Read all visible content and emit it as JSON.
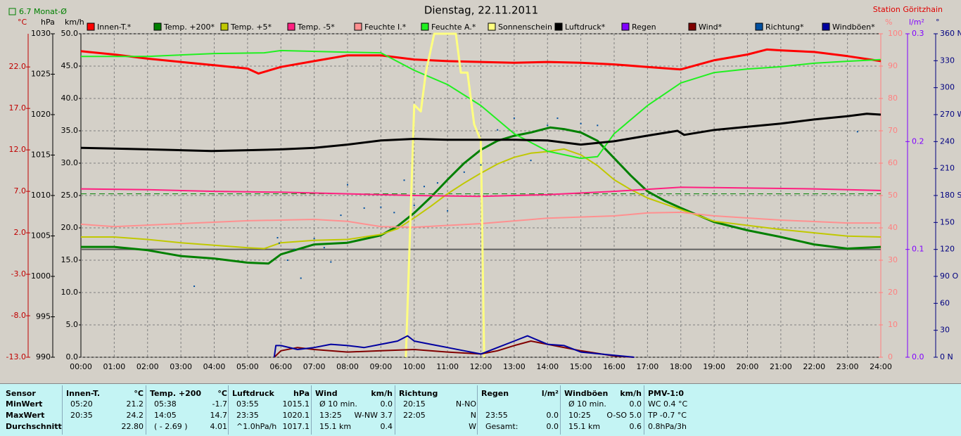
{
  "chart_data": {
    "type": "line",
    "title": "Dienstag, 22.11.2011",
    "station": "Station Göritzhain",
    "monthly_average": {
      "value": 6.7,
      "label": "6.7 Monat-Ø"
    },
    "xlim": [
      0,
      24
    ],
    "xticks": [
      {
        "value": 0,
        "label": "00:00"
      },
      {
        "value": 1,
        "label": "01:00"
      },
      {
        "value": 2,
        "label": "02:00"
      },
      {
        "value": 3,
        "label": "03:00"
      },
      {
        "value": 4,
        "label": "04:00"
      },
      {
        "value": 5,
        "label": "05:00"
      },
      {
        "value": 6,
        "label": "06:00"
      },
      {
        "value": 7,
        "label": "07:00"
      },
      {
        "value": 8,
        "label": "08:00"
      },
      {
        "value": 9,
        "label": "09:00"
      },
      {
        "value": 10,
        "label": "10:00"
      },
      {
        "value": 11,
        "label": "11:00"
      },
      {
        "value": 12,
        "label": "12:00"
      },
      {
        "value": 13,
        "label": "13:00"
      },
      {
        "value": 14,
        "label": "14:00"
      },
      {
        "value": 15,
        "label": "15:00"
      },
      {
        "value": 16,
        "label": "16:00"
      },
      {
        "value": 17,
        "label": "17:00"
      },
      {
        "value": 18,
        "label": "18:00"
      },
      {
        "value": 19,
        "label": "19:00"
      },
      {
        "value": 20,
        "label": "20:00"
      },
      {
        "value": 21,
        "label": "21:00"
      },
      {
        "value": 22,
        "label": "22:00"
      },
      {
        "value": 23,
        "label": "23:00"
      },
      {
        "value": 24,
        "label": "24:00"
      }
    ],
    "grid": true,
    "axes": [
      {
        "label": "°C",
        "color": "#c00000",
        "ylim": [
          -13,
          26
        ],
        "yticks": [
          {
            "value": -13,
            "label": "-13.0"
          },
          {
            "value": -8,
            "label": "-8.0"
          },
          {
            "value": -3,
            "label": "-3.0"
          },
          {
            "value": 2,
            "label": "2.0"
          },
          {
            "value": 7,
            "label": "7.0"
          },
          {
            "value": 12,
            "label": "12.0"
          },
          {
            "value": 17,
            "label": "17.0"
          },
          {
            "value": 22,
            "label": "22.0"
          }
        ]
      },
      {
        "label": "hPa",
        "color": "#000000",
        "ylim": [
          990,
          1030
        ],
        "yticks": [
          990,
          995,
          1000,
          1005,
          1010,
          1015,
          1020,
          1025,
          1030
        ]
      },
      {
        "label": "km/h",
        "color": "#000000",
        "ylim": [
          0,
          50
        ],
        "yticks": [
          {
            "value": 0,
            "label": "0.0"
          },
          {
            "value": 5,
            "label": "5.0"
          },
          {
            "value": 10,
            "label": "10.0"
          },
          {
            "value": 15,
            "label": "15.0"
          },
          {
            "value": 20,
            "label": "20.0"
          },
          {
            "value": 25,
            "label": "25.0"
          },
          {
            "value": 30,
            "label": "30.0"
          },
          {
            "value": 35,
            "label": "35.0"
          },
          {
            "value": 40,
            "label": "40.0"
          },
          {
            "value": 45,
            "label": "45.0"
          },
          {
            "value": 50,
            "label": "50.0"
          }
        ]
      },
      {
        "label": "%",
        "color": "#ff8080",
        "ylim": [
          0,
          100
        ],
        "yticks": [
          0,
          10,
          20,
          30,
          40,
          50,
          60,
          70,
          80,
          90,
          100
        ]
      },
      {
        "label": "l/m²",
        "color": "#8000ff",
        "ylim": [
          0,
          0.3
        ],
        "yticks": [
          {
            "value": 0,
            "label": "0.0"
          },
          {
            "value": 0.1,
            "label": "0.1"
          },
          {
            "value": 0.2,
            "label": "0.2"
          },
          {
            "value": 0.3,
            "label": "0.3"
          }
        ]
      },
      {
        "label": "°",
        "color": "#000080",
        "ylim": [
          0,
          360
        ],
        "yticks": [
          {
            "value": 0,
            "label": "0 N"
          },
          30,
          60,
          {
            "value": 90,
            "label": "90 O"
          },
          120,
          150,
          {
            "value": 180,
            "label": "180 S"
          },
          210,
          240,
          {
            "value": 270,
            "label": "270 W"
          },
          300,
          330,
          {
            "value": 360,
            "label": "360 N"
          }
        ]
      }
    ],
    "series": [
      {
        "name": "Innen-T.*",
        "color": "#ff0000",
        "axis": 0,
        "width": 3,
        "x": [
          0,
          1,
          2,
          3,
          4,
          5,
          5.33,
          6,
          7,
          8,
          9,
          10,
          11,
          12,
          13,
          14,
          15,
          16,
          17,
          18,
          19,
          20,
          20.58,
          21,
          22,
          23,
          24
        ],
        "values": [
          23.9,
          23.5,
          23.0,
          22.6,
          22.2,
          21.8,
          21.2,
          22.0,
          22.7,
          23.4,
          23.4,
          22.9,
          22.7,
          22.6,
          22.5,
          22.6,
          22.5,
          22.3,
          22.0,
          21.7,
          22.8,
          23.5,
          24.1,
          24.0,
          23.8,
          23.3,
          22.7
        ]
      },
      {
        "name": "Temp. +200*",
        "color": "#008000",
        "axis": 0,
        "width": 3,
        "x": [
          0,
          1,
          2,
          3,
          4,
          5,
          5.63,
          6,
          7,
          8,
          9,
          9.5,
          10,
          10.5,
          11,
          11.5,
          12,
          12.5,
          13,
          13.5,
          14.08,
          14.5,
          15,
          15.5,
          16,
          16.5,
          17,
          17.5,
          18,
          19,
          20,
          21,
          22,
          23,
          24
        ],
        "values": [
          0.3,
          0.3,
          -0.1,
          -0.8,
          -1.1,
          -1.6,
          -1.7,
          -0.6,
          0.6,
          0.8,
          1.7,
          2.8,
          4.4,
          6.3,
          8.4,
          10.4,
          12.0,
          13.1,
          13.7,
          14.1,
          14.7,
          14.5,
          14.1,
          13.1,
          11.0,
          8.9,
          7.0,
          5.9,
          5.0,
          3.3,
          2.3,
          1.5,
          0.6,
          0.1,
          0.3
        ]
      },
      {
        "name": "Temp. +5*",
        "color": "#c0c800",
        "axis": 0,
        "width": 2,
        "x": [
          0,
          1,
          2,
          3,
          4,
          5,
          5.5,
          6,
          7,
          8,
          9,
          9.5,
          10,
          10.5,
          11,
          11.5,
          12,
          12.5,
          13,
          13.5,
          14,
          14.5,
          15,
          15.5,
          16,
          16.5,
          17,
          17.5,
          18,
          19,
          20,
          21,
          22,
          23,
          24
        ],
        "values": [
          1.5,
          1.5,
          1.2,
          0.8,
          0.5,
          0.2,
          0.1,
          0.8,
          1.1,
          1.2,
          1.8,
          2.5,
          3.8,
          5.2,
          6.7,
          8.0,
          9.2,
          10.3,
          11.1,
          11.6,
          11.8,
          12.1,
          11.4,
          10.1,
          8.4,
          7.2,
          6.2,
          5.5,
          4.8,
          3.4,
          2.9,
          2.4,
          2.0,
          1.6,
          1.5
        ]
      },
      {
        "name": "Temp. -5*",
        "color": "#ff2080",
        "axis": 0,
        "width": 2,
        "x": [
          0,
          2,
          4,
          6,
          8,
          10,
          12,
          14,
          16,
          18,
          20,
          22,
          24
        ],
        "values": [
          7.3,
          7.2,
          7.0,
          6.9,
          6.7,
          6.5,
          6.4,
          6.6,
          7.0,
          7.5,
          7.4,
          7.3,
          7.1
        ]
      },
      {
        "name": "Feuchte I.*",
        "color": "#ff9090",
        "axis": 3,
        "width": 2,
        "x": [
          0,
          1,
          3,
          5,
          7,
          8,
          9,
          10,
          12,
          14,
          16,
          17,
          18,
          19,
          21,
          23,
          24
        ],
        "values": [
          41.1,
          40.4,
          41.3,
          42.2,
          42.6,
          42.0,
          40.4,
          40.2,
          41.3,
          43.0,
          43.7,
          44.6,
          44.8,
          43.7,
          42.4,
          41.5,
          41.5
        ]
      },
      {
        "name": "Feuchte A.*",
        "color": "#20f020",
        "axis": 3,
        "width": 2,
        "x": [
          0,
          2,
          4,
          5.5,
          6,
          8,
          9,
          10,
          11,
          12,
          13,
          14,
          15,
          15.5,
          16,
          17,
          18,
          19,
          20,
          21,
          22,
          23,
          24
        ],
        "values": [
          93.0,
          93.0,
          93.9,
          94.1,
          94.8,
          94.3,
          94.1,
          88.7,
          84.3,
          77.8,
          69.1,
          63.7,
          61.5,
          62.0,
          69.1,
          77.8,
          84.8,
          88.0,
          89.1,
          89.8,
          90.9,
          91.5,
          92.0
        ]
      },
      {
        "name": "Sonnenschein",
        "color": "#ffff80",
        "axis": 3,
        "width": 3,
        "x": [
          9.75,
          10.0,
          10.2,
          10.35,
          10.6,
          11.25,
          11.4,
          11.6,
          11.8,
          12.0,
          12.1
        ],
        "values": [
          0,
          78,
          76,
          88,
          100,
          100,
          88,
          88,
          72,
          67,
          0
        ]
      },
      {
        "name": "Luftdruck*",
        "color": "#000000",
        "axis": 1,
        "width": 3,
        "x": [
          0,
          1,
          2,
          3,
          3.92,
          5,
          6,
          7,
          8,
          9,
          10,
          11,
          12,
          13,
          14,
          15,
          16,
          17,
          17.9,
          18.1,
          19,
          20,
          21,
          22,
          23,
          23.58,
          24
        ],
        "values": [
          1015.9,
          1015.8,
          1015.7,
          1015.6,
          1015.5,
          1015.6,
          1015.7,
          1015.9,
          1016.3,
          1016.8,
          1017.0,
          1016.9,
          1016.9,
          1016.9,
          1016.8,
          1016.3,
          1016.7,
          1017.4,
          1018.0,
          1017.5,
          1018.1,
          1018.5,
          1018.9,
          1019.4,
          1019.8,
          1020.1,
          1020.0
        ]
      },
      {
        "name": "Regen",
        "color": "#8000ff",
        "axis": 4,
        "width": 2,
        "x": [],
        "values": []
      },
      {
        "name": "Wind*",
        "color": "#800000",
        "axis": 2,
        "width": 2,
        "x": [
          5.8,
          6,
          6.5,
          7,
          8,
          9,
          10,
          11,
          12,
          12.5,
          13,
          13.5,
          14,
          15,
          16,
          16.6
        ],
        "values": [
          0,
          1.0,
          1.5,
          1.2,
          0.8,
          1.0,
          1.2,
          0.8,
          0.5,
          1.0,
          1.8,
          2.5,
          2.0,
          1.0,
          0.2,
          0
        ]
      },
      {
        "name": "Richtung*",
        "color": "#0050a0",
        "axis": 5,
        "style": "dots",
        "x": [
          3.4,
          5.9,
          5.95,
          6.2,
          6.4,
          6.6,
          7,
          7.3,
          7.5,
          7.8,
          8,
          8.5,
          9,
          9.4,
          9.7,
          10,
          10.3,
          10.7,
          11,
          11.5,
          12,
          12.5,
          13,
          13.5,
          14,
          14.3,
          15,
          15.5,
          23.3
        ],
        "values": [
          79,
          133,
          127,
          108,
          120,
          88,
          132,
          122,
          106,
          158,
          192,
          166,
          167,
          161,
          197,
          169,
          190,
          194,
          163,
          206,
          214,
          253,
          266,
          219,
          258,
          266,
          260,
          258,
          251
        ]
      },
      {
        "name": "Windböen*",
        "color": "#0000a0",
        "axis": 2,
        "width": 2,
        "x": [
          5.8,
          5.85,
          6,
          6.5,
          7,
          7.5,
          8,
          8.5,
          9,
          9.5,
          9.8,
          10,
          10.5,
          11,
          11.5,
          12,
          12.5,
          13,
          13.4,
          14,
          14.5,
          15,
          16,
          16.6
        ],
        "values": [
          0,
          1.8,
          1.8,
          1.2,
          1.5,
          2.0,
          1.8,
          1.5,
          2.0,
          2.5,
          3.3,
          2.5,
          2.0,
          1.5,
          1.0,
          0.5,
          1.5,
          2.5,
          3.3,
          2.0,
          1.8,
          0.8,
          0.3,
          0
        ]
      }
    ]
  },
  "table": {
    "header": "Sensor",
    "row_labels": [
      "MinWert",
      "MaxWert",
      "Durchschnitt"
    ],
    "columns": [
      {
        "name": "Innen-T.",
        "unit": "°C",
        "rows": [
          [
            "05:20",
            "21.2"
          ],
          [
            "20:35",
            "24.2"
          ],
          [
            null,
            "22.80"
          ]
        ]
      },
      {
        "name": "Temp. +200",
        "unit": "°C",
        "rows": [
          [
            "05:38",
            "-1.7"
          ],
          [
            "14:05",
            "14.7"
          ],
          [
            "( - 2.69 )",
            "4.01"
          ]
        ]
      },
      {
        "name": "Luftdruck",
        "unit": "hPa",
        "rows": [
          [
            "03:55",
            "1015.1"
          ],
          [
            "23:35",
            "1020.1"
          ],
          [
            "^1.0hPa/h",
            "1017.1"
          ]
        ]
      },
      {
        "name": "Wind",
        "unit": "km/h",
        "rows": [
          [
            "Ø 10 min.",
            "0.0"
          ],
          [
            "13:25",
            "W-NW 3.7"
          ],
          [
            "15.1 km",
            "0.4"
          ]
        ]
      },
      {
        "name": "Richtung",
        "unit": null,
        "rows": [
          [
            "20:15",
            "N-NO"
          ],
          [
            "22:05",
            "N"
          ],
          [
            null,
            "W"
          ]
        ]
      },
      {
        "name": "Regen",
        "unit": "l/m²",
        "rows": [
          [
            null,
            null
          ],
          [
            "23:55",
            "0.0"
          ],
          [
            "Gesamt:",
            "0.0"
          ]
        ]
      },
      {
        "name": "Windböen",
        "unit": "km/h",
        "rows": [
          [
            "Ø 10 min.",
            "0.0"
          ],
          [
            "10:25",
            "O-SO 5.0"
          ],
          [
            "15.1 km",
            "0.6"
          ]
        ]
      },
      {
        "name": "PMV-1:0",
        "unit": null,
        "rows": [
          [
            "WC 0.4 °C"
          ],
          [
            "TP -0.7 °C"
          ],
          [
            "0.8hPa/3h"
          ]
        ]
      }
    ]
  }
}
